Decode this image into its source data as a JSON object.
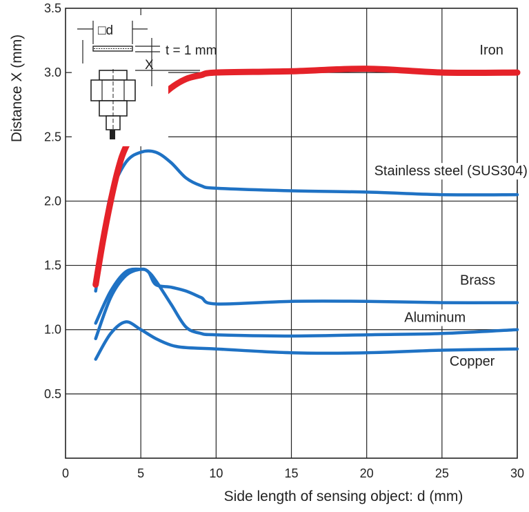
{
  "chart_data": {
    "type": "line",
    "xlabel": "Side length of sensing object: d (mm)",
    "ylabel": "Distance X (mm)",
    "xlim": [
      0,
      30
    ],
    "ylim": [
      0,
      3.5
    ],
    "x_ticks": [
      "0",
      "5",
      "10",
      "15",
      "20",
      "25",
      "30"
    ],
    "y_ticks": [
      "0.5",
      "1.0",
      "1.5",
      "2.0",
      "2.5",
      "3.0",
      "3.5"
    ],
    "grid": true,
    "series": [
      {
        "name": "Iron",
        "color": "#e52229",
        "points": [
          [
            2,
            1.35
          ],
          [
            2.5,
            1.7
          ],
          [
            3,
            2.0
          ],
          [
            3.5,
            2.25
          ],
          [
            4,
            2.42
          ],
          [
            5,
            2.62
          ],
          [
            6,
            2.77
          ],
          [
            7,
            2.88
          ],
          [
            8,
            2.95
          ],
          [
            9,
            2.98
          ],
          [
            10,
            3.0
          ],
          [
            15,
            3.01
          ],
          [
            20,
            3.03
          ],
          [
            25,
            3.0
          ],
          [
            30,
            3.0
          ]
        ]
      },
      {
        "name": "Stainless steel (SUS304)",
        "color": "#1f72c4",
        "points": [
          [
            2,
            1.3
          ],
          [
            2.5,
            1.7
          ],
          [
            3,
            2.05
          ],
          [
            4,
            2.3
          ],
          [
            5,
            2.38
          ],
          [
            6,
            2.38
          ],
          [
            7,
            2.3
          ],
          [
            8,
            2.18
          ],
          [
            9,
            2.12
          ],
          [
            10,
            2.1
          ],
          [
            15,
            2.08
          ],
          [
            20,
            2.07
          ],
          [
            25,
            2.05
          ],
          [
            30,
            2.05
          ]
        ]
      },
      {
        "name": "Brass",
        "color": "#1f72c4",
        "points": [
          [
            2,
            1.05
          ],
          [
            3,
            1.3
          ],
          [
            4,
            1.45
          ],
          [
            5,
            1.47
          ],
          [
            5.5,
            1.45
          ],
          [
            6,
            1.35
          ],
          [
            7,
            1.33
          ],
          [
            8,
            1.3
          ],
          [
            9,
            1.25
          ],
          [
            10,
            1.2
          ],
          [
            15,
            1.22
          ],
          [
            20,
            1.22
          ],
          [
            25,
            1.21
          ],
          [
            30,
            1.21
          ]
        ]
      },
      {
        "name": "Aluminum",
        "color": "#1f72c4",
        "points": [
          [
            2,
            0.93
          ],
          [
            3,
            1.25
          ],
          [
            4,
            1.42
          ],
          [
            5,
            1.47
          ],
          [
            5.5,
            1.45
          ],
          [
            6,
            1.38
          ],
          [
            7,
            1.2
          ],
          [
            8,
            1.02
          ],
          [
            9,
            0.97
          ],
          [
            10,
            0.96
          ],
          [
            15,
            0.95
          ],
          [
            20,
            0.96
          ],
          [
            25,
            0.97
          ],
          [
            30,
            1.0
          ]
        ]
      },
      {
        "name": "Copper",
        "color": "#1f72c4",
        "points": [
          [
            2,
            0.77
          ],
          [
            3,
            0.97
          ],
          [
            4,
            1.06
          ],
          [
            5,
            1.0
          ],
          [
            6,
            0.93
          ],
          [
            7,
            0.88
          ],
          [
            8,
            0.86
          ],
          [
            10,
            0.85
          ],
          [
            15,
            0.82
          ],
          [
            20,
            0.82
          ],
          [
            25,
            0.84
          ],
          [
            30,
            0.85
          ]
        ]
      }
    ],
    "labels": [
      {
        "text": "Iron",
        "x": 27.5,
        "y": 3.14
      },
      {
        "text": "Stainless steel (SUS304)",
        "x": 20.5,
        "y": 2.2
      },
      {
        "text": "Brass",
        "x": 26.2,
        "y": 1.35
      },
      {
        "text": "Aluminum",
        "x": 22.5,
        "y": 1.06
      },
      {
        "text": "Copper",
        "x": 25.5,
        "y": 0.72
      }
    ]
  },
  "inset": {
    "d_label": "□d",
    "t_label": "t = 1 mm",
    "x_label": "X"
  }
}
